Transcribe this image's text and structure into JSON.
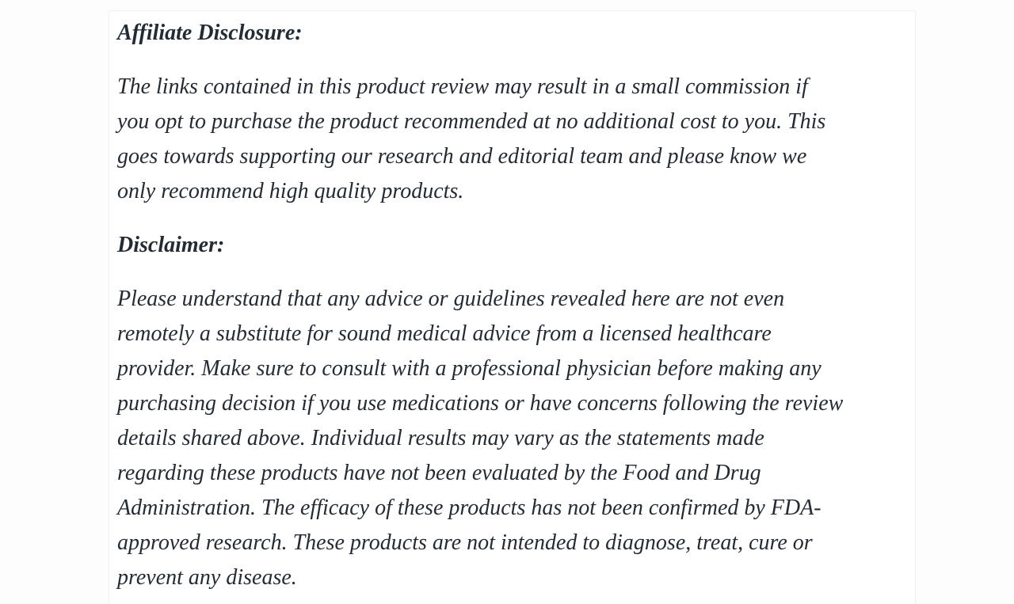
{
  "colors": {
    "page_background": "#fdfdfd",
    "card_background": "#ffffff",
    "card_border": "#f0f0f0",
    "text": "#242b33"
  },
  "article": {
    "affiliate_disclosure": {
      "heading": "Affiliate Disclosure:",
      "paragraph_lines": [
        "The links contained in this product review may result in a small commission if",
        "you opt to purchase the product recommended at no additional cost to you. This",
        "goes towards supporting our research and editorial team and please know we",
        "only recommend high quality products."
      ]
    },
    "disclaimer": {
      "heading": "Disclaimer:",
      "paragraph_lines": [
        "Please understand that any advice or guidelines revealed here are not even",
        "remotely a substitute for sound medical advice from a licensed healthcare",
        "provider. Make sure to consult with a professional physician before making any",
        "purchasing decision if you use medications or have concerns following the review",
        "details shared above. Individual results may vary as the statements made",
        "regarding these products have not been evaluated by the Food and Drug",
        "Administration. The efficacy of these products has not been confirmed by FDA-",
        "approved research. These products are not intended to diagnose, treat, cure or",
        "prevent any disease."
      ]
    }
  }
}
